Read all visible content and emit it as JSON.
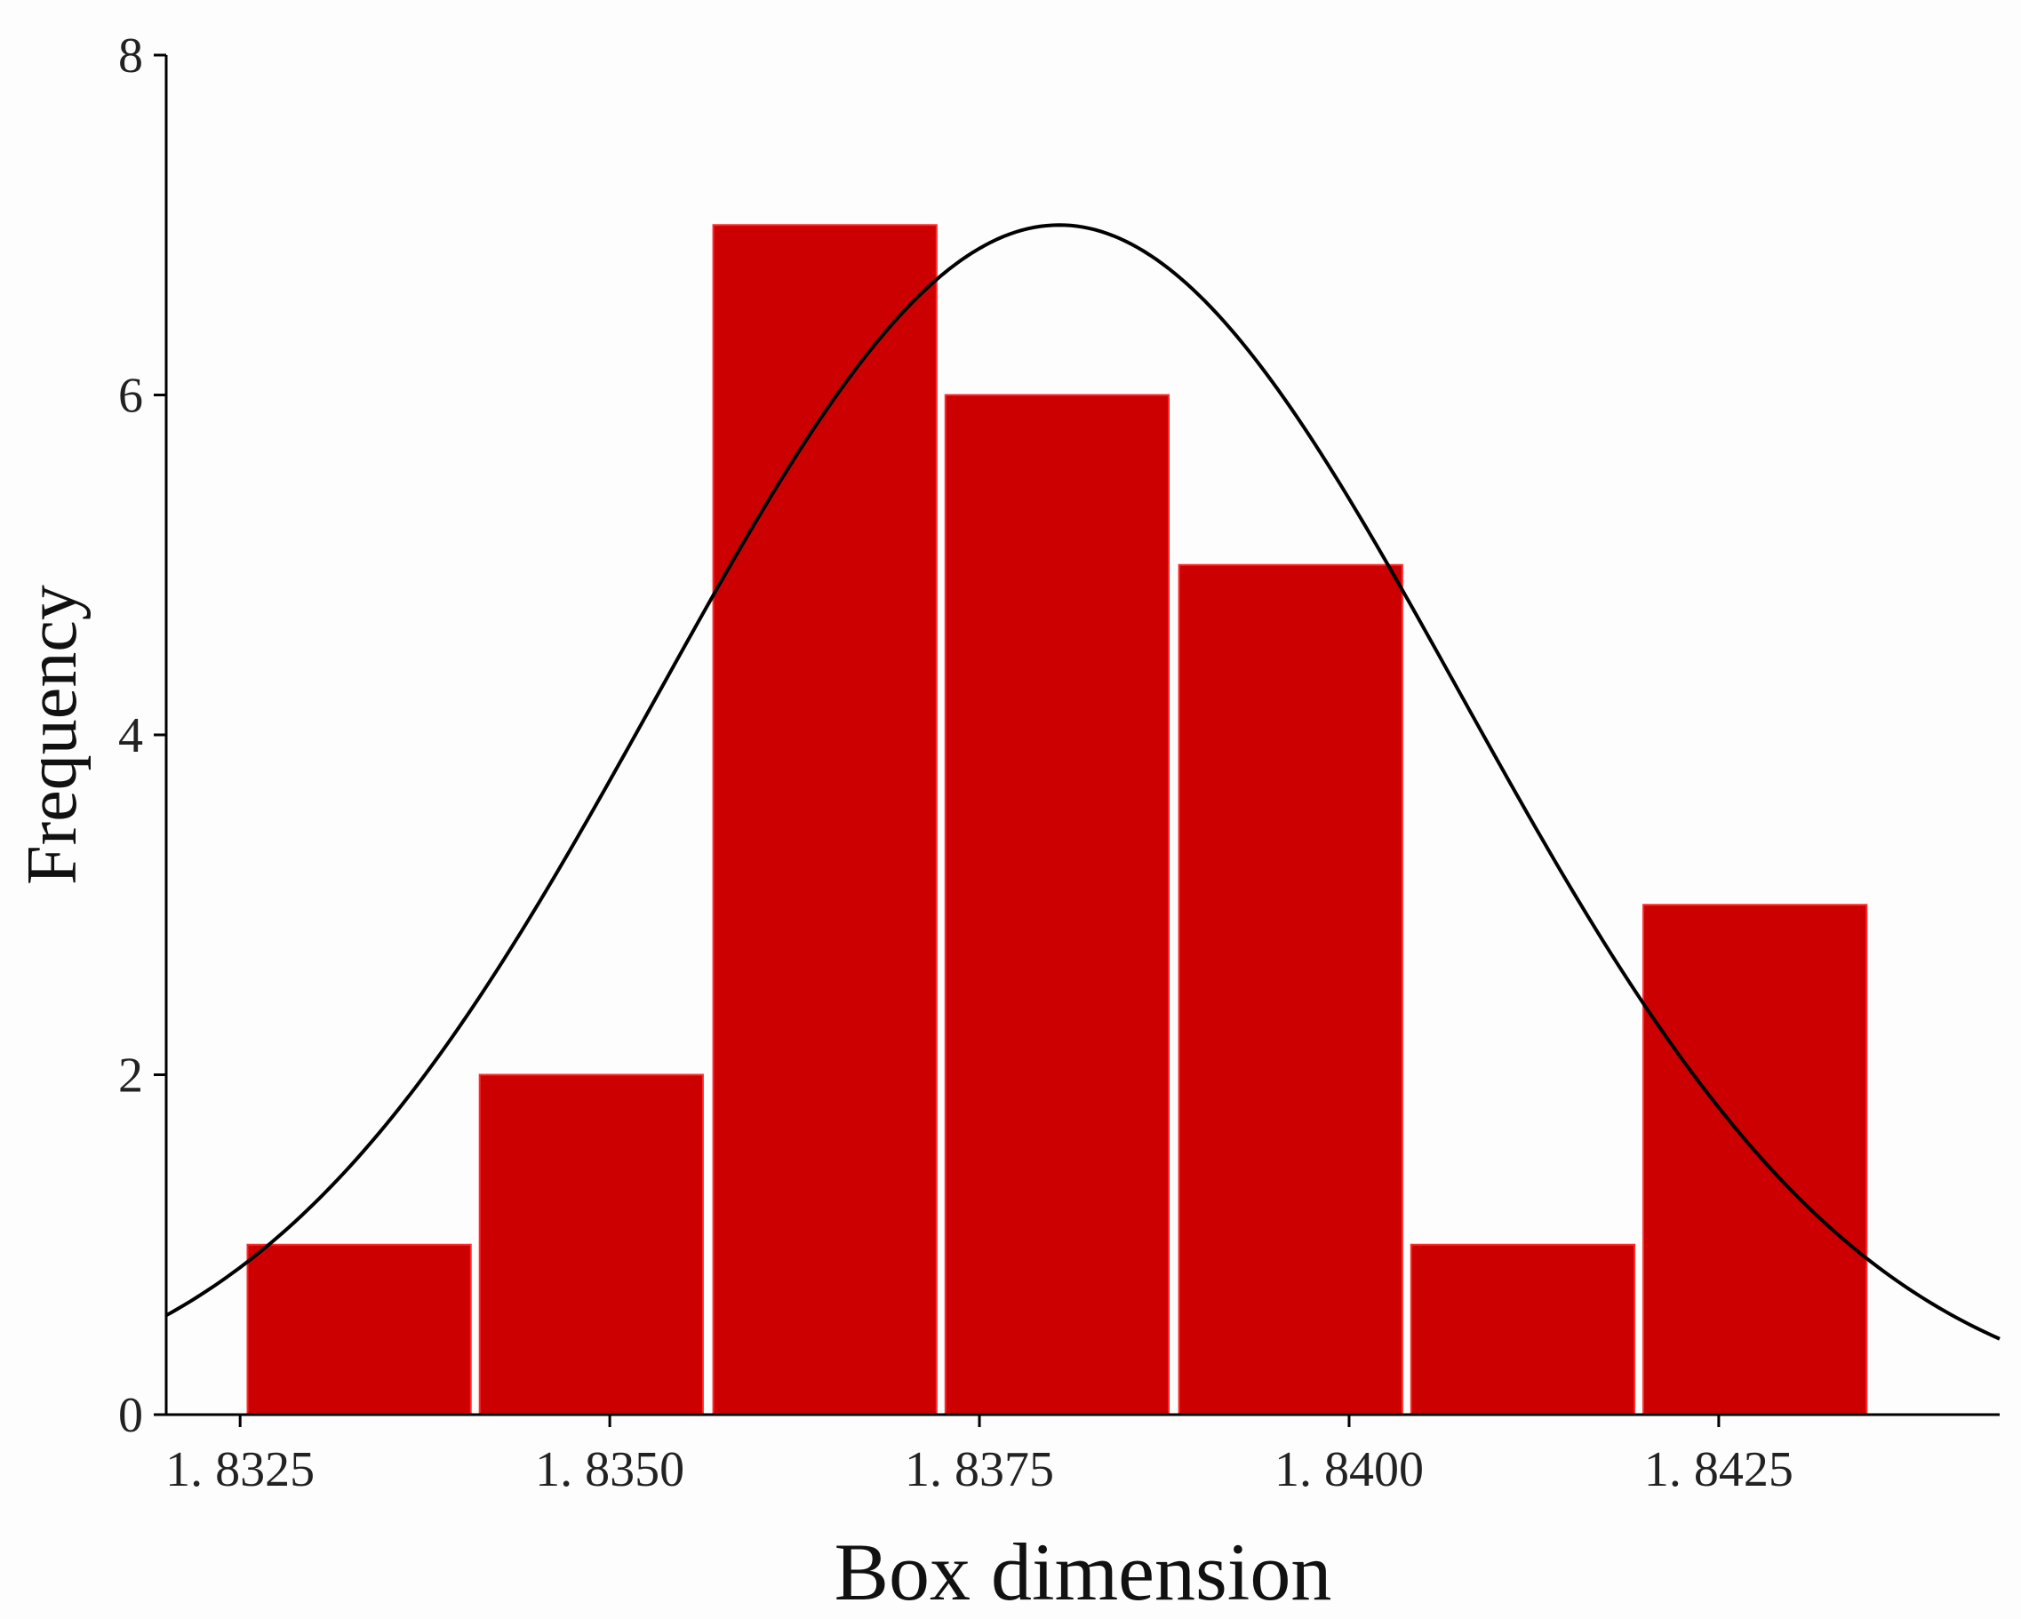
{
  "chart_data": {
    "type": "bar",
    "subtype": "histogram-with-normal-fit",
    "title": "",
    "xlabel": "Box dimension",
    "ylabel": "Frequency",
    "xlim": [
      1.832,
      1.8444
    ],
    "ylim": [
      0,
      8
    ],
    "x_ticks": [
      {
        "value": 1.8325,
        "label": "1. 8325"
      },
      {
        "value": 1.835,
        "label": "1. 8350"
      },
      {
        "value": 1.8375,
        "label": "1. 8375"
      },
      {
        "value": 1.84,
        "label": "1. 8400"
      },
      {
        "value": 1.8425,
        "label": "1. 8425"
      }
    ],
    "y_ticks": [
      {
        "value": 0,
        "label": "0"
      },
      {
        "value": 2,
        "label": "2"
      },
      {
        "value": 4,
        "label": "4"
      },
      {
        "value": 6,
        "label": "6"
      },
      {
        "value": 8,
        "label": "8"
      }
    ],
    "bins": [
      {
        "x0": 1.83255,
        "x1": 1.83406,
        "count": 1
      },
      {
        "x0": 1.83412,
        "x1": 1.83563,
        "count": 2
      },
      {
        "x0": 1.8357,
        "x1": 1.83721,
        "count": 7
      },
      {
        "x0": 1.83727,
        "x1": 1.83878,
        "count": 6
      },
      {
        "x0": 1.83885,
        "x1": 1.84036,
        "count": 5
      },
      {
        "x0": 1.84042,
        "x1": 1.84193,
        "count": 1
      },
      {
        "x0": 1.84199,
        "x1": 1.8435,
        "count": 3
      }
    ],
    "normal_curve": {
      "mean": 1.83804,
      "sd": 0.00271,
      "peak": 7.0
    },
    "grid": false,
    "legend": "none",
    "colors": {
      "bar_fill": "#cc0000",
      "bar_edge": "#ff2a2a",
      "curve": "#000000",
      "axis": "#000000"
    }
  }
}
